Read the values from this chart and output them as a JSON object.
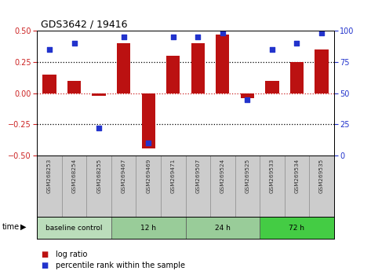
{
  "title": "GDS3642 / 19416",
  "samples": [
    "GSM268253",
    "GSM268254",
    "GSM268255",
    "GSM269467",
    "GSM269469",
    "GSM269471",
    "GSM269507",
    "GSM269524",
    "GSM269525",
    "GSM269533",
    "GSM269534",
    "GSM269535"
  ],
  "log_ratios": [
    0.15,
    0.1,
    -0.02,
    0.4,
    -0.44,
    0.3,
    0.4,
    0.47,
    -0.04,
    0.1,
    0.25,
    0.35
  ],
  "percentile_ranks": [
    85,
    90,
    22,
    95,
    10,
    95,
    95,
    98,
    45,
    85,
    90,
    98
  ],
  "bar_color": "#bb1111",
  "dot_color": "#2233cc",
  "ylim": [
    -0.5,
    0.5
  ],
  "right_ylim": [
    0,
    100
  ],
  "yticks_left": [
    -0.5,
    -0.25,
    0,
    0.25,
    0.5
  ],
  "yticks_right": [
    0,
    25,
    50,
    75,
    100
  ],
  "groups": [
    {
      "label": "baseline control",
      "start": 0,
      "end": 3,
      "color": "#bbddbb"
    },
    {
      "label": "12 h",
      "start": 3,
      "end": 6,
      "color": "#99cc99"
    },
    {
      "label": "24 h",
      "start": 6,
      "end": 9,
      "color": "#99cc99"
    },
    {
      "label": "72 h",
      "start": 9,
      "end": 12,
      "color": "#44cc44"
    }
  ],
  "legend_bar_label": "log ratio",
  "legend_dot_label": "percentile rank within the sample",
  "time_label": "time",
  "sample_bg": "#cccccc",
  "plot_bg": "#ffffff"
}
